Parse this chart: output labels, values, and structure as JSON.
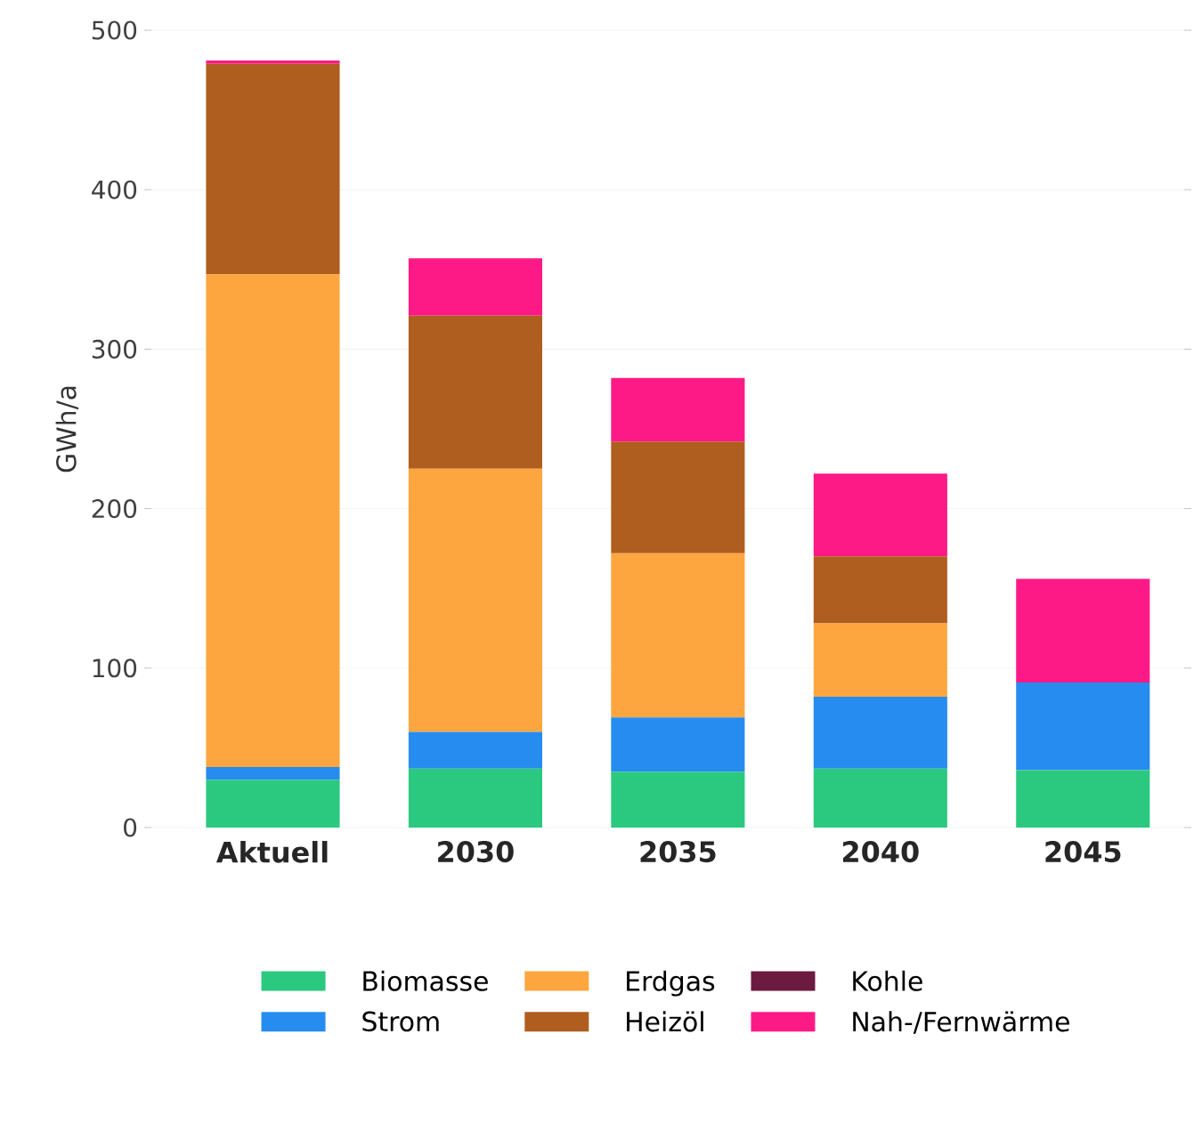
{
  "chart_data": {
    "type": "bar",
    "stacked": true,
    "ylabel": "GWh/a",
    "categories": [
      "Aktuell",
      "2030",
      "2035",
      "2040",
      "2045"
    ],
    "series": [
      {
        "name": "Biomasse",
        "color": "#2ac97f",
        "values": [
          30,
          37,
          35,
          37,
          36
        ]
      },
      {
        "name": "Strom",
        "color": "#268cf0",
        "values": [
          8,
          23,
          34,
          45,
          55
        ]
      },
      {
        "name": "Erdgas",
        "color": "#fda63f",
        "values": [
          309,
          165,
          103,
          46,
          0
        ]
      },
      {
        "name": "Heizöl",
        "color": "#b05d20",
        "values": [
          132,
          96,
          70,
          42,
          0
        ]
      },
      {
        "name": "Kohle",
        "color": "#6b1a40",
        "values": [
          0,
          0,
          0,
          0,
          0
        ]
      },
      {
        "name": "Nah-/Fernwärme",
        "color": "#fe1a86",
        "values": [
          2,
          36,
          40,
          52,
          65
        ]
      }
    ],
    "ylim": [
      0,
      500
    ],
    "yticks": [
      0,
      100,
      200,
      300,
      400,
      500
    ],
    "grid": "y",
    "legend": "bottom"
  }
}
